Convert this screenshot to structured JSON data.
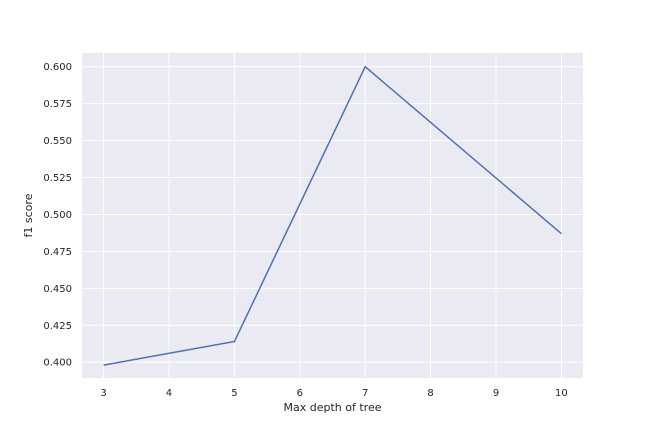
{
  "chart_data": {
    "type": "line",
    "title": "",
    "xlabel": "Max depth of tree",
    "ylabel": "f1 score",
    "x": [
      3,
      5,
      7,
      10
    ],
    "series": [
      {
        "values": [
          0.398,
          0.414,
          0.6,
          0.487
        ],
        "color": "#4c72b0"
      }
    ],
    "xlim": [
      2.67,
      10.33
    ],
    "ylim": [
      0.3893,
      0.6093
    ],
    "xticks": [
      3,
      4,
      5,
      6,
      7,
      8,
      9,
      10
    ],
    "xtick_labels": [
      "3",
      "4",
      "5",
      "6",
      "7",
      "8",
      "9",
      "10"
    ],
    "yticks": [
      0.4,
      0.425,
      0.45,
      0.475,
      0.5,
      0.525,
      0.55,
      0.575,
      0.6
    ],
    "ytick_labels": [
      "0.400",
      "0.425",
      "0.450",
      "0.475",
      "0.500",
      "0.525",
      "0.550",
      "0.575",
      "0.600"
    ],
    "grid": true,
    "colors": {
      "plot_background": "#eaeaf2",
      "grid": "#ffffff",
      "text": "#262626"
    }
  }
}
